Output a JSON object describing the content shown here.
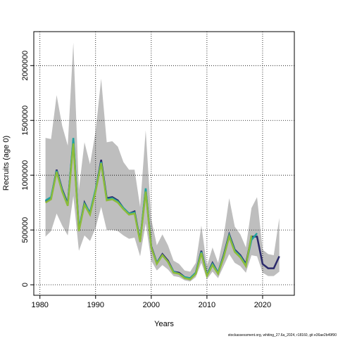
{
  "chart_data": {
    "type": "line",
    "xlabel": "Years",
    "ylabel": "Recruits (age 0)",
    "footer": "stockassessment.org, whiting_27.6a_2024, r18160, git e36ae2b49f90",
    "x": [
      1981,
      1982,
      1983,
      1984,
      1985,
      1986,
      1987,
      1988,
      1989,
      1990,
      1991,
      1992,
      1993,
      1994,
      1995,
      1996,
      1997,
      1998,
      1999,
      2000,
      2001,
      2002,
      2003,
      2004,
      2005,
      2006,
      2007,
      2008,
      2009,
      2010,
      2011,
      2012,
      2013,
      2014,
      2015,
      2016,
      2017,
      2018,
      2019,
      2020,
      2021,
      2022,
      2023
    ],
    "band": {
      "color": "#bebebe",
      "upper": [
        1340000,
        1330000,
        1730000,
        1450000,
        1270000,
        2210000,
        870000,
        1300000,
        1100000,
        1400000,
        1880000,
        1300000,
        1310000,
        1260000,
        1120000,
        1050000,
        1050000,
        710000,
        1410000,
        600000,
        360000,
        460000,
        360000,
        220000,
        190000,
        130000,
        120000,
        200000,
        540000,
        170000,
        340000,
        200000,
        440000,
        790000,
        530000,
        460000,
        340000,
        700000,
        800000,
        320000,
        280000,
        270000,
        610000
      ],
      "lower": [
        440000,
        490000,
        650000,
        540000,
        450000,
        810000,
        310000,
        450000,
        400000,
        520000,
        710000,
        500000,
        500000,
        490000,
        450000,
        420000,
        430000,
        260000,
        560000,
        220000,
        130000,
        180000,
        140000,
        80000,
        70000,
        40000,
        30000,
        70000,
        200000,
        50000,
        120000,
        60000,
        170000,
        280000,
        200000,
        170000,
        110000,
        270000,
        260000,
        110000,
        80000,
        80000,
        120000
      ]
    },
    "series": [
      {
        "color": "#2b2a6b",
        "values": [
          760000,
          790000,
          1050000,
          870000,
          740000,
          1320000,
          500000,
          750000,
          650000,
          860000,
          1140000,
          790000,
          800000,
          770000,
          700000,
          650000,
          670000,
          400000,
          870000,
          350000,
          200000,
          280000,
          220000,
          120000,
          110000,
          70000,
          60000,
          110000,
          310000,
          90000,
          200000,
          110000,
          270000,
          460000,
          320000,
          270000,
          190000,
          440000,
          440000,
          190000,
          150000,
          150000,
          260000
        ]
      },
      {
        "color": "#20a39e",
        "values": [
          770000,
          800000,
          1040000,
          860000,
          730000,
          1340000,
          510000,
          740000,
          660000,
          870000,
          1120000,
          780000,
          790000,
          760000,
          700000,
          650000,
          660000,
          400000,
          880000,
          340000,
          200000,
          270000,
          210000,
          120000,
          100000,
          70000,
          60000,
          110000,
          300000,
          90000,
          190000,
          110000,
          260000,
          450000,
          310000,
          260000,
          180000,
          410000,
          470000,
          null,
          null,
          null,
          null
        ]
      },
      {
        "color": "#8dbb3a",
        "values": [
          750000,
          780000,
          1030000,
          850000,
          720000,
          1290000,
          490000,
          730000,
          640000,
          850000,
          1110000,
          770000,
          780000,
          750000,
          690000,
          640000,
          650000,
          390000,
          850000,
          340000,
          190000,
          270000,
          210000,
          110000,
          100000,
          60000,
          50000,
          100000,
          290000,
          80000,
          180000,
          100000,
          250000,
          440000,
          300000,
          250000,
          170000,
          450000,
          null,
          null,
          null,
          null,
          null
        ]
      }
    ],
    "xlim": [
      1978.9,
      2025.7
    ],
    "ylim": [
      -96000,
      2310000
    ],
    "xticks": [
      1980,
      1990,
      2000,
      2010,
      2020
    ],
    "yticks": [
      0,
      500000,
      1000000,
      1500000,
      2000000
    ],
    "grid": true
  }
}
